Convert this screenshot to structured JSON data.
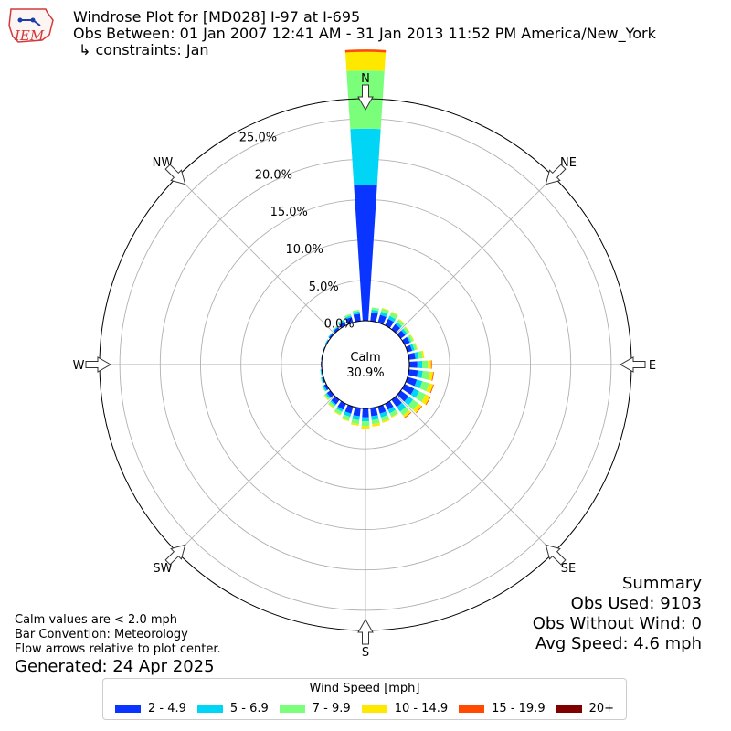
{
  "header": {
    "logo_text": "IEM",
    "title": "Windrose Plot for [MD028] I-97 at I-695",
    "obs_between": "Obs Between: 01 Jan 2007 12:41 AM - 31 Jan 2013 11:52 PM America/New_York",
    "constraints": "↳ constraints: Jan"
  },
  "summary": {
    "heading": "Summary",
    "obs_used": "Obs Used: 9103",
    "obs_without_wind": "Obs Without Wind: 0",
    "avg_speed": "Avg Speed: 4.6 mph"
  },
  "notes": {
    "calm_note": "Calm values are < 2.0 mph",
    "bar_convention": "Bar Convention: Meteorology",
    "flow_arrows": "Flow arrows relative to plot center.",
    "generated": "Generated: 24 Apr 2025"
  },
  "legend": {
    "title": "Wind Speed [mph]",
    "items": [
      {
        "label": "2 - 4.9",
        "color": "#0a34ff"
      },
      {
        "label": "5 - 6.9",
        "color": "#00d5f5"
      },
      {
        "label": "7 - 9.9",
        "color": "#7bff7b"
      },
      {
        "label": "10 - 14.9",
        "color": "#ffe800"
      },
      {
        "label": "15 - 19.9",
        "color": "#ff4a00"
      },
      {
        "label": "20+",
        "color": "#800000"
      }
    ]
  },
  "chart_data": {
    "type": "windrose",
    "title": "Windrose Plot for [MD028] I-97 at I-695",
    "calm_label": "Calm",
    "calm_percent": "30.9%",
    "radial_unit": "%",
    "radial_ticks": [
      0,
      5,
      10,
      15,
      20,
      25
    ],
    "radial_tick_labels": [
      "0.0%",
      "5.0%",
      "10.0%",
      "15.0%",
      "20.0%",
      "25.0%"
    ],
    "rmax": 27.5,
    "direction_labels": [
      {
        "label": "N",
        "deg": 0
      },
      {
        "label": "NE",
        "deg": 45
      },
      {
        "label": "E",
        "deg": 90
      },
      {
        "label": "SE",
        "deg": 135
      },
      {
        "label": "S",
        "deg": 180
      },
      {
        "label": "SW",
        "deg": 225
      },
      {
        "label": "W",
        "deg": 270
      },
      {
        "label": "NW",
        "deg": 315
      }
    ],
    "bins": [
      "2 - 4.9",
      "5 - 6.9",
      "7 - 9.9",
      "10 - 14.9",
      "15 - 19.9",
      "20+"
    ],
    "directions_deg": [
      0,
      10,
      20,
      30,
      40,
      50,
      60,
      70,
      80,
      90,
      100,
      110,
      120,
      130,
      140,
      150,
      160,
      170,
      180,
      190,
      200,
      210,
      220,
      230,
      240,
      250,
      260,
      270,
      280,
      290,
      300,
      310,
      320,
      330,
      340,
      350
    ],
    "cumulative_percent": [
      [
        16.8,
        23.8,
        31.0,
        33.3,
        33.6,
        33.6
      ],
      [
        1.1,
        1.4,
        1.7,
        1.7,
        1.7,
        1.7
      ],
      [
        1.0,
        1.4,
        1.8,
        1.9,
        1.9,
        1.9
      ],
      [
        0.9,
        1.3,
        1.8,
        1.9,
        1.9,
        1.9
      ],
      [
        0.8,
        1.1,
        1.5,
        1.6,
        1.6,
        1.6
      ],
      [
        0.7,
        1.0,
        1.3,
        1.4,
        1.4,
        1.4
      ],
      [
        0.7,
        0.9,
        1.2,
        1.3,
        1.3,
        1.3
      ],
      [
        0.6,
        0.9,
        1.2,
        1.3,
        1.3,
        1.3
      ],
      [
        0.8,
        1.2,
        1.7,
        1.9,
        1.9,
        1.9
      ],
      [
        1.0,
        1.6,
        2.3,
        2.7,
        2.8,
        2.8
      ],
      [
        1.1,
        1.7,
        2.6,
        3.0,
        3.1,
        3.1
      ],
      [
        1.2,
        1.9,
        2.8,
        3.3,
        3.4,
        3.4
      ],
      [
        1.3,
        2.0,
        2.9,
        3.5,
        3.6,
        3.6
      ],
      [
        1.2,
        1.9,
        2.7,
        3.2,
        3.3,
        3.3
      ],
      [
        1.1,
        1.8,
        2.4,
        2.7,
        2.8,
        2.8
      ],
      [
        0.8,
        1.3,
        1.8,
        1.9,
        1.9,
        1.9
      ],
      [
        0.9,
        1.4,
        1.9,
        2.1,
        2.1,
        2.1
      ],
      [
        1.0,
        1.5,
        2.0,
        2.3,
        2.3,
        2.3
      ],
      [
        1.1,
        1.6,
        2.2,
        2.5,
        2.5,
        2.5
      ],
      [
        1.0,
        1.5,
        2.0,
        2.2,
        2.2,
        2.2
      ],
      [
        0.9,
        1.3,
        1.8,
        1.9,
        1.9,
        1.9
      ],
      [
        0.8,
        1.1,
        1.5,
        1.6,
        1.6,
        1.6
      ],
      [
        0.7,
        0.9,
        1.2,
        1.3,
        1.3,
        1.3
      ],
      [
        0.5,
        0.7,
        0.9,
        1.0,
        1.0,
        1.0
      ],
      [
        0.3,
        0.5,
        0.6,
        0.6,
        0.6,
        0.6
      ],
      [
        0.2,
        0.3,
        0.4,
        0.4,
        0.4,
        0.4
      ],
      [
        0.1,
        0.2,
        0.2,
        0.2,
        0.2,
        0.2
      ],
      [
        0.1,
        0.1,
        0.1,
        0.1,
        0.1,
        0.1
      ],
      [
        0.1,
        0.1,
        0.1,
        0.1,
        0.1,
        0.1
      ],
      [
        0.1,
        0.1,
        0.1,
        0.1,
        0.1,
        0.1
      ],
      [
        0.1,
        0.2,
        0.2,
        0.2,
        0.2,
        0.2
      ],
      [
        0.2,
        0.3,
        0.3,
        0.3,
        0.3,
        0.3
      ],
      [
        0.3,
        0.4,
        0.5,
        0.5,
        0.5,
        0.5
      ],
      [
        0.5,
        0.7,
        0.8,
        0.8,
        0.8,
        0.8
      ],
      [
        0.7,
        0.9,
        1.1,
        1.1,
        1.1,
        1.1
      ],
      [
        0.9,
        1.2,
        1.4,
        1.4,
        1.4,
        1.4
      ]
    ]
  }
}
